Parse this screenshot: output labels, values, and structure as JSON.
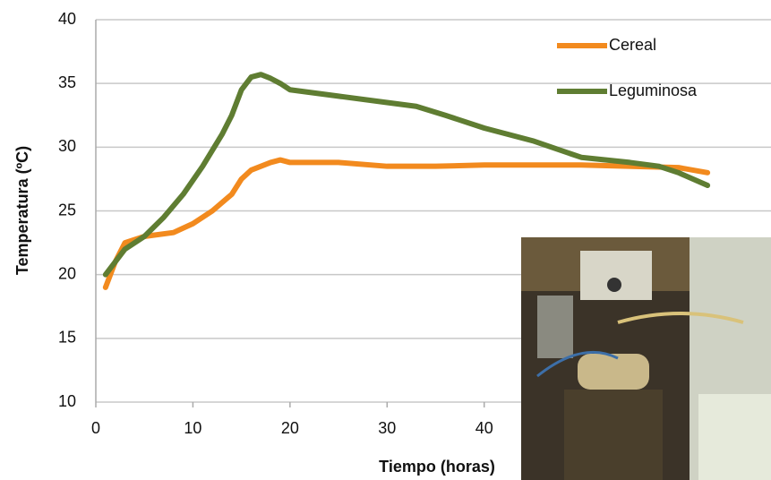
{
  "chart_data": {
    "type": "line",
    "x_label": "Tiempo (horas)",
    "y_label": "Temperatura (ºC)",
    "xlim": [
      0,
      70
    ],
    "xticks": [
      0,
      10,
      20,
      30,
      40
    ],
    "ylim": [
      10,
      40
    ],
    "yticks": [
      10,
      15,
      20,
      25,
      30,
      35,
      40
    ],
    "grid": true,
    "legend": "top-right",
    "series": [
      {
        "name": "Cereal",
        "color": "#f28a1e",
        "x": [
          1,
          2,
          3,
          5,
          8,
          10,
          12,
          14,
          15,
          16,
          18,
          19,
          20,
          25,
          30,
          35,
          40,
          50,
          60,
          63
        ],
        "values": [
          19,
          21,
          22.5,
          23,
          23.3,
          24,
          25,
          26.3,
          27.5,
          28.2,
          28.8,
          29,
          28.8,
          28.8,
          28.5,
          28.5,
          28.6,
          28.6,
          28.4,
          28
        ]
      },
      {
        "name": "Leguminosa",
        "color": "#5f7d32",
        "x": [
          1,
          2,
          3,
          5,
          7,
          9,
          11,
          13,
          14,
          15,
          16,
          17,
          18,
          19,
          20,
          25,
          30,
          33,
          36,
          40,
          45,
          50,
          55,
          58,
          60,
          63
        ],
        "values": [
          20,
          21,
          22,
          23,
          24.5,
          26.3,
          28.5,
          31,
          32.5,
          34.5,
          35.5,
          35.7,
          35.4,
          35,
          34.5,
          34,
          33.5,
          33.2,
          32.5,
          31.5,
          30.5,
          29.2,
          28.8,
          28.5,
          28,
          27
        ]
      }
    ]
  }
}
